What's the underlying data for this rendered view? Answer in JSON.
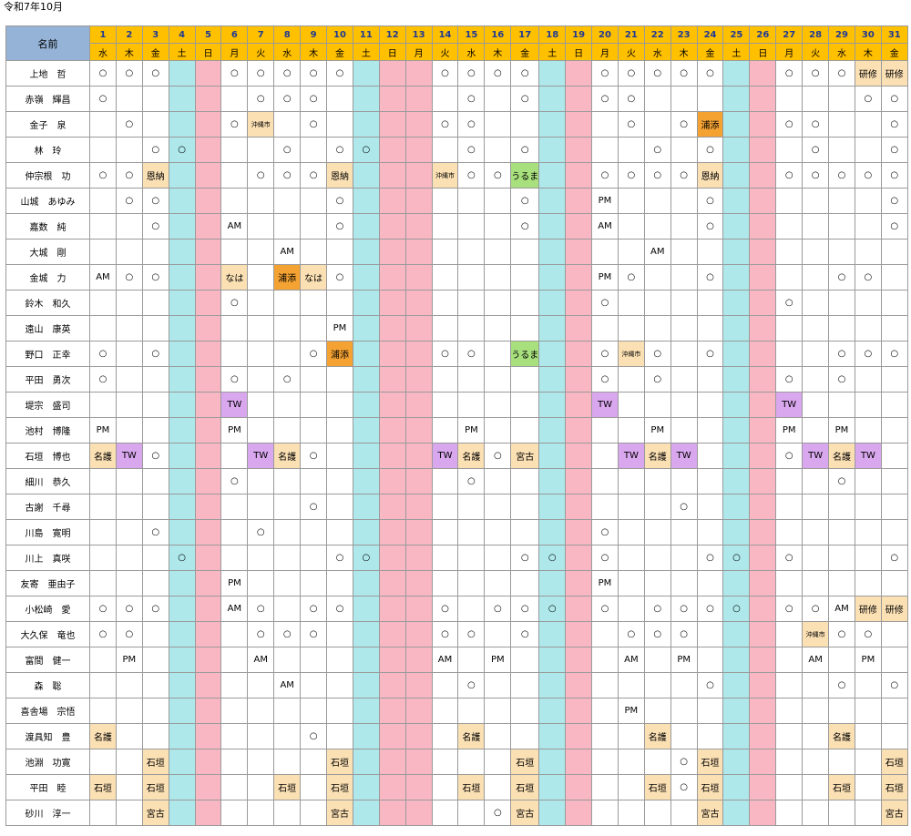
{
  "title": "令和7年10月",
  "header_label": "名前",
  "days": [
    "1",
    "2",
    "3",
    "4",
    "5",
    "6",
    "7",
    "8",
    "9",
    "10",
    "11",
    "12",
    "13",
    "14",
    "15",
    "16",
    "17",
    "18",
    "19",
    "20",
    "21",
    "22",
    "23",
    "24",
    "25",
    "26",
    "27",
    "28",
    "29",
    "30",
    "31"
  ],
  "weekdays": [
    "水",
    "木",
    "金",
    "土",
    "日",
    "月",
    "火",
    "水",
    "木",
    "金",
    "土",
    "日",
    "月",
    "火",
    "水",
    "木",
    "金",
    "土",
    "日",
    "月",
    "火",
    "水",
    "木",
    "金",
    "土",
    "日",
    "月",
    "火",
    "水",
    "木",
    "金"
  ],
  "day_types": [
    "",
    "",
    "",
    "sat",
    "sun",
    "",
    "",
    "",
    "",
    "",
    "sat",
    "sun",
    "sun",
    "",
    "",
    "",
    "",
    "sat",
    "sun",
    "",
    "",
    "",
    "",
    "",
    "sat",
    "sun",
    "",
    "",
    "",
    "",
    ""
  ],
  "colors": {
    "header_gold": "#ffc000",
    "name_header": "#95b3d7",
    "saturday": "#aee8ea",
    "sunday_holiday": "#f9b7c4",
    "tag_cream": "#fbe0b4",
    "tag_orange": "#f4a232",
    "tag_purple": "#d9a7ee",
    "tag_green": "#a8e07e"
  },
  "rows": [
    {
      "name": "上地　哲",
      "cells": {
        "1": "○",
        "2": "○",
        "3": "○",
        "6": "○",
        "7": "○",
        "8": "○",
        "9": "○",
        "10": "○",
        "14": "○",
        "15": "○",
        "16": "○",
        "17": "○",
        "20": "○",
        "21": "○",
        "22": "○",
        "23": "○",
        "24": "○",
        "27": "○",
        "28": "○",
        "29": "○",
        "30": "研修",
        "31": "研修"
      }
    },
    {
      "name": "赤嶺　輝昌",
      "cells": {
        "1": "○",
        "7": "○",
        "8": "○",
        "9": "○",
        "15": "○",
        "17": "○",
        "20": "○",
        "21": "○",
        "30": "○",
        "31": "○"
      }
    },
    {
      "name": "金子　泉",
      "cells": {
        "2": "○",
        "6": "○",
        "7": "沖縄市",
        "9": "○",
        "14": "○",
        "15": "○",
        "21": "○",
        "23": "○",
        "24": "浦添",
        "27": "○",
        "28": "○",
        "31": "○"
      }
    },
    {
      "name": "林　玲",
      "cells": {
        "3": "○",
        "4": "○",
        "8": "○",
        "10": "○",
        "11": "○",
        "15": "○",
        "17": "○",
        "22": "○",
        "24": "○",
        "28": "○",
        "31": "○"
      }
    },
    {
      "name": "仲宗根　功",
      "cells": {
        "1": "○",
        "2": "○",
        "3": "恩納",
        "7": "○",
        "8": "○",
        "9": "○",
        "10": "恩納",
        "14": "沖縄市",
        "15": "○",
        "16": "○",
        "17": "うるま",
        "20": "○",
        "21": "○",
        "22": "○",
        "23": "○",
        "24": "恩納",
        "27": "○",
        "28": "○",
        "29": "○",
        "30": "○",
        "31": "○"
      }
    },
    {
      "name": "山城　あゆみ",
      "cells": {
        "2": "○",
        "3": "○",
        "10": "○",
        "17": "○",
        "20": "PM",
        "24": "○",
        "31": "○"
      }
    },
    {
      "name": "嘉数　純",
      "cells": {
        "3": "○",
        "6": "AM",
        "10": "○",
        "17": "○",
        "20": "AM",
        "24": "○",
        "31": "○"
      }
    },
    {
      "name": "大城　剛",
      "cells": {
        "8": "AM",
        "22": "AM"
      }
    },
    {
      "name": "金城　力",
      "cells": {
        "1": "AM",
        "2": "○",
        "3": "○",
        "6": "なは",
        "8": "浦添",
        "9": "なは",
        "10": "○",
        "20": "PM",
        "21": "○",
        "24": "○",
        "29": "○",
        "30": "○"
      }
    },
    {
      "name": "鈴木　和久",
      "cells": {
        "6": "○",
        "20": "○",
        "27": "○"
      }
    },
    {
      "name": "遠山　康英",
      "cells": {
        "10": "PM"
      }
    },
    {
      "name": "野口　正幸",
      "cells": {
        "1": "○",
        "3": "○",
        "9": "○",
        "10": "浦添",
        "14": "○",
        "15": "○",
        "17": "うるま",
        "20": "○",
        "21": "沖縄市",
        "22": "○",
        "24": "○",
        "29": "○",
        "30": "○",
        "31": "○"
      }
    },
    {
      "name": "平田　勇次",
      "cells": {
        "1": "○",
        "6": "○",
        "8": "○",
        "20": "○",
        "22": "○",
        "27": "○",
        "29": "○"
      }
    },
    {
      "name": "堤宗　盛司",
      "cells": {
        "6": "TW",
        "20": "TW",
        "27": "TW"
      }
    },
    {
      "name": "池村　博隆",
      "cells": {
        "1": "PM",
        "6": "PM",
        "15": "PM",
        "22": "PM",
        "27": "PM",
        "29": "PM"
      }
    },
    {
      "name": "石垣　博也",
      "cells": {
        "1": "名護",
        "2": "TW",
        "3": "○",
        "7": "TW",
        "8": "名護",
        "9": "○",
        "14": "TW",
        "15": "名護",
        "16": "○",
        "17": "宮古",
        "21": "TW",
        "22": "名護",
        "23": "TW",
        "27": "○",
        "28": "TW",
        "29": "名護",
        "30": "TW"
      }
    },
    {
      "name": "細川　恭久",
      "cells": {
        "6": "○",
        "15": "○",
        "29": "○"
      }
    },
    {
      "name": "古謝　千尋",
      "cells": {
        "9": "○",
        "23": "○"
      }
    },
    {
      "name": "川島　寛明",
      "cells": {
        "3": "○",
        "7": "○",
        "20": "○"
      }
    },
    {
      "name": "川上　真咲",
      "cells": {
        "4": "○",
        "10": "○",
        "11": "○",
        "17": "○",
        "18": "○",
        "20": "○",
        "24": "○",
        "25": "○",
        "27": "○",
        "31": "○"
      }
    },
    {
      "name": "友寄　亜由子",
      "cells": {
        "6": "PM",
        "20": "PM"
      }
    },
    {
      "name": "小松崎　愛",
      "cells": {
        "1": "○",
        "2": "○",
        "3": "○",
        "6": "AM",
        "7": "○",
        "9": "○",
        "10": "○",
        "14": "○",
        "16": "○",
        "17": "○",
        "18": "○",
        "20": "○",
        "22": "○",
        "23": "○",
        "24": "○",
        "25": "○",
        "27": "○",
        "28": "○",
        "29": "AM",
        "30": "研修",
        "31": "研修"
      }
    },
    {
      "name": "大久保　竜也",
      "cells": {
        "1": "○",
        "2": "○",
        "7": "○",
        "8": "○",
        "9": "○",
        "14": "○",
        "15": "○",
        "17": "○",
        "21": "○",
        "22": "○",
        "23": "○",
        "28": "沖縄市",
        "29": "○",
        "30": "○"
      }
    },
    {
      "name": "富間　健一",
      "cells": {
        "2": "PM",
        "7": "AM",
        "14": "AM",
        "16": "PM",
        "21": "AM",
        "23": "PM",
        "28": "AM",
        "30": "PM"
      }
    },
    {
      "name": "森　聡",
      "cells": {
        "8": "AM",
        "15": "○",
        "24": "○",
        "29": "○",
        "31": "○"
      }
    },
    {
      "name": "喜舎場　宗悟",
      "cells": {
        "21": "PM"
      }
    },
    {
      "name": "渡具知　豊",
      "cells": {
        "1": "名護",
        "9": "○",
        "15": "名護",
        "22": "名護",
        "29": "名護"
      }
    },
    {
      "name": "池淵　功寛",
      "cells": {
        "3": "石垣",
        "10": "石垣",
        "17": "石垣",
        "23": "○",
        "24": "石垣",
        "31": "石垣"
      }
    },
    {
      "name": "平田　睦",
      "cells": {
        "1": "石垣",
        "3": "石垣",
        "8": "石垣",
        "10": "石垣",
        "15": "石垣",
        "17": "石垣",
        "22": "石垣",
        "23": "○",
        "24": "石垣",
        "29": "石垣",
        "31": "石垣"
      }
    },
    {
      "name": "砂川　淳一",
      "cells": {
        "3": "宮古",
        "10": "宮古",
        "16": "○",
        "17": "宮古",
        "24": "宮古",
        "31": "宮古"
      }
    }
  ]
}
